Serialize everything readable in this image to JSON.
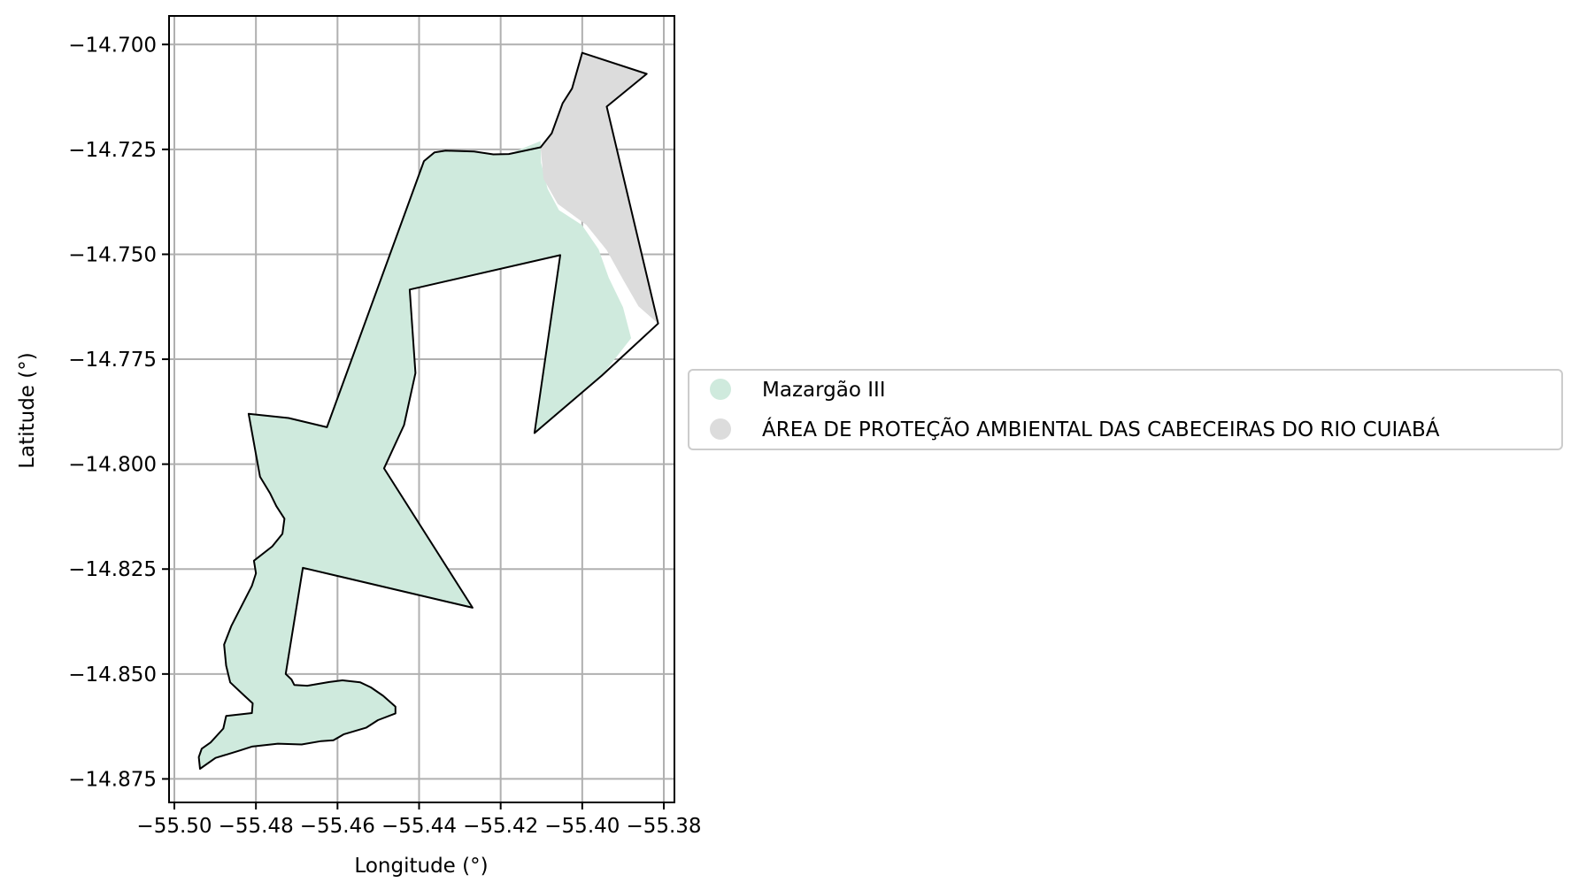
{
  "map": {
    "xlabel": "Longitude (°)",
    "ylabel": "Latitude (°)",
    "xlim": [
      -55.5013,
      -55.3774
    ],
    "ylim": [
      -14.8806,
      -14.6932
    ],
    "grid": true,
    "x_ticks": [
      {
        "value": -55.5,
        "label": "−55.50"
      },
      {
        "value": -55.48,
        "label": "−55.48"
      },
      {
        "value": -55.46,
        "label": "−55.46"
      },
      {
        "value": -55.44,
        "label": "−55.44"
      },
      {
        "value": -55.42,
        "label": "−55.42"
      },
      {
        "value": -55.4,
        "label": "−55.40"
      },
      {
        "value": -55.38,
        "label": "−55.38"
      }
    ],
    "y_ticks": [
      {
        "value": -14.7,
        "label": "−14.700"
      },
      {
        "value": -14.725,
        "label": "−14.725"
      },
      {
        "value": -14.75,
        "label": "−14.750"
      },
      {
        "value": -14.775,
        "label": "−14.775"
      },
      {
        "value": -14.8,
        "label": "−14.800"
      },
      {
        "value": -14.825,
        "label": "−14.825"
      },
      {
        "value": -14.85,
        "label": "−14.850"
      },
      {
        "value": -14.875,
        "label": "−14.875"
      }
    ],
    "layers": [
      {
        "name": "Mazargão III",
        "color": "#cfeadd",
        "coords": [
          [
            -55.4388,
            -14.7278
          ],
          [
            -55.4362,
            -14.7257
          ],
          [
            -55.4335,
            -14.7253
          ],
          [
            -55.4265,
            -14.7255
          ],
          [
            -55.4218,
            -14.7262
          ],
          [
            -55.418,
            -14.7261
          ],
          [
            -55.4102,
            -14.723
          ],
          [
            -55.4101,
            -14.7282
          ],
          [
            -55.4085,
            -14.7344
          ],
          [
            -55.4057,
            -14.7395
          ],
          [
            -55.4001,
            -14.743
          ],
          [
            -55.396,
            -14.7488
          ],
          [
            -55.3935,
            -14.7556
          ],
          [
            -55.39,
            -14.7626
          ],
          [
            -55.388,
            -14.77
          ],
          [
            -55.3952,
            -14.7789
          ],
          [
            -55.4117,
            -14.7926
          ],
          [
            -55.4054,
            -14.7502
          ],
          [
            -55.4423,
            -14.7584
          ],
          [
            -55.4409,
            -14.7783
          ],
          [
            -55.4437,
            -14.7907
          ],
          [
            -55.4486,
            -14.801
          ],
          [
            -55.4269,
            -14.8342
          ],
          [
            -55.4685,
            -14.8247
          ],
          [
            -55.4727,
            -14.85
          ],
          [
            -55.4713,
            -14.8513
          ],
          [
            -55.4706,
            -14.8526
          ],
          [
            -55.4674,
            -14.8528
          ],
          [
            -55.462,
            -14.8519
          ],
          [
            -55.4588,
            -14.8515
          ],
          [
            -55.4544,
            -14.852
          ],
          [
            -55.4518,
            -14.8532
          ],
          [
            -55.4488,
            -14.8552
          ],
          [
            -55.4458,
            -14.8578
          ],
          [
            -55.4458,
            -14.8594
          ],
          [
            -55.4501,
            -14.861
          ],
          [
            -55.453,
            -14.8628
          ],
          [
            -55.4585,
            -14.8644
          ],
          [
            -55.461,
            -14.8658
          ],
          [
            -55.464,
            -14.866
          ],
          [
            -55.4688,
            -14.8668
          ],
          [
            -55.4746,
            -14.8666
          ],
          [
            -55.481,
            -14.8673
          ],
          [
            -55.4842,
            -14.8683
          ],
          [
            -55.4872,
            -14.8692
          ],
          [
            -55.4899,
            -14.87
          ],
          [
            -55.4937,
            -14.8726
          ],
          [
            -55.494,
            -14.8698
          ],
          [
            -55.4933,
            -14.8678
          ],
          [
            -55.4911,
            -14.8663
          ],
          [
            -55.488,
            -14.863
          ],
          [
            -55.4873,
            -14.86
          ],
          [
            -55.481,
            -14.8593
          ],
          [
            -55.4808,
            -14.857
          ],
          [
            -55.483,
            -14.855
          ],
          [
            -55.4863,
            -14.852
          ],
          [
            -55.4873,
            -14.848
          ],
          [
            -55.4878,
            -14.843
          ],
          [
            -55.486,
            -14.8385
          ],
          [
            -55.481,
            -14.829
          ],
          [
            -55.48,
            -14.826
          ],
          [
            -55.4805,
            -14.823
          ],
          [
            -55.476,
            -14.8196
          ],
          [
            -55.4735,
            -14.8166
          ],
          [
            -55.473,
            -14.813
          ],
          [
            -55.475,
            -14.81
          ],
          [
            -55.4765,
            -14.807
          ],
          [
            -55.479,
            -14.803
          ],
          [
            -55.4818,
            -14.788
          ],
          [
            -55.472,
            -14.789
          ],
          [
            -55.4626,
            -14.7912
          ]
        ]
      },
      {
        "name": "ÁREA DE PROTEÇÃO AMBIENTAL DAS CABECEIRAS DO RIO CUIABÁ",
        "color": "#dcdcdc",
        "coords": [
          [
            -55.4102,
            -14.7245
          ],
          [
            -55.4075,
            -14.7212
          ],
          [
            -55.4048,
            -14.714
          ],
          [
            -55.4025,
            -14.7105
          ],
          [
            -55.4,
            -14.702
          ],
          [
            -55.3842,
            -14.707
          ],
          [
            -55.394,
            -14.7148
          ],
          [
            -55.3814,
            -14.7665
          ],
          [
            -55.3862,
            -14.7624
          ],
          [
            -55.39,
            -14.756
          ],
          [
            -55.394,
            -14.749
          ],
          [
            -55.399,
            -14.743
          ],
          [
            -55.406,
            -14.738
          ],
          [
            -55.4095,
            -14.732
          ]
        ]
      }
    ],
    "boundaries": [
      {
        "name": "boundary-outline",
        "coords": [
          [
            -55.4626,
            -14.7912
          ],
          [
            -55.4388,
            -14.7278
          ],
          [
            -55.4362,
            -14.7257
          ],
          [
            -55.4335,
            -14.7253
          ],
          [
            -55.4265,
            -14.7255
          ],
          [
            -55.4218,
            -14.7262
          ],
          [
            -55.418,
            -14.7261
          ],
          [
            -55.4102,
            -14.7245
          ],
          [
            -55.4075,
            -14.7212
          ],
          [
            -55.4048,
            -14.714
          ],
          [
            -55.4025,
            -14.7105
          ],
          [
            -55.4,
            -14.702
          ],
          [
            -55.3842,
            -14.707
          ],
          [
            -55.394,
            -14.7148
          ],
          [
            -55.3814,
            -14.7665
          ],
          [
            -55.3952,
            -14.7789
          ],
          [
            -55.4117,
            -14.7926
          ],
          [
            -55.4054,
            -14.7502
          ],
          [
            -55.4423,
            -14.7584
          ],
          [
            -55.4409,
            -14.7783
          ],
          [
            -55.4437,
            -14.7907
          ],
          [
            -55.4486,
            -14.801
          ],
          [
            -55.4269,
            -14.8342
          ],
          [
            -55.4685,
            -14.8247
          ],
          [
            -55.4727,
            -14.85
          ],
          [
            -55.4713,
            -14.8513
          ],
          [
            -55.4706,
            -14.8526
          ],
          [
            -55.4674,
            -14.8528
          ],
          [
            -55.462,
            -14.8519
          ],
          [
            -55.4588,
            -14.8515
          ],
          [
            -55.4544,
            -14.852
          ],
          [
            -55.4518,
            -14.8532
          ],
          [
            -55.4488,
            -14.8552
          ],
          [
            -55.4458,
            -14.8578
          ],
          [
            -55.4458,
            -14.8594
          ],
          [
            -55.4501,
            -14.861
          ],
          [
            -55.453,
            -14.8628
          ],
          [
            -55.4585,
            -14.8644
          ],
          [
            -55.461,
            -14.8658
          ],
          [
            -55.464,
            -14.866
          ],
          [
            -55.4688,
            -14.8668
          ],
          [
            -55.4746,
            -14.8666
          ],
          [
            -55.481,
            -14.8673
          ],
          [
            -55.4842,
            -14.8683
          ],
          [
            -55.4872,
            -14.8692
          ],
          [
            -55.4899,
            -14.87
          ],
          [
            -55.4937,
            -14.8726
          ],
          [
            -55.494,
            -14.8698
          ],
          [
            -55.4933,
            -14.8678
          ],
          [
            -55.4911,
            -14.8663
          ],
          [
            -55.488,
            -14.863
          ],
          [
            -55.4873,
            -14.86
          ],
          [
            -55.481,
            -14.8593
          ],
          [
            -55.4808,
            -14.857
          ],
          [
            -55.483,
            -14.855
          ],
          [
            -55.4863,
            -14.852
          ],
          [
            -55.4873,
            -14.848
          ],
          [
            -55.4878,
            -14.843
          ],
          [
            -55.486,
            -14.8385
          ],
          [
            -55.481,
            -14.829
          ],
          [
            -55.48,
            -14.826
          ],
          [
            -55.4805,
            -14.823
          ],
          [
            -55.476,
            -14.8196
          ],
          [
            -55.4735,
            -14.8166
          ],
          [
            -55.473,
            -14.813
          ],
          [
            -55.475,
            -14.81
          ],
          [
            -55.4765,
            -14.807
          ],
          [
            -55.479,
            -14.803
          ],
          [
            -55.4818,
            -14.788
          ],
          [
            -55.472,
            -14.789
          ],
          [
            -55.4626,
            -14.7912
          ]
        ]
      }
    ],
    "legend": {
      "placement": "right",
      "entries": [
        {
          "label": "Mazargão III",
          "color": "#cfeadd"
        },
        {
          "label": "ÁREA DE PROTEÇÃO AMBIENTAL DAS CABECEIRAS DO RIO CUIABÁ",
          "color": "#dcdcdc"
        }
      ]
    }
  }
}
